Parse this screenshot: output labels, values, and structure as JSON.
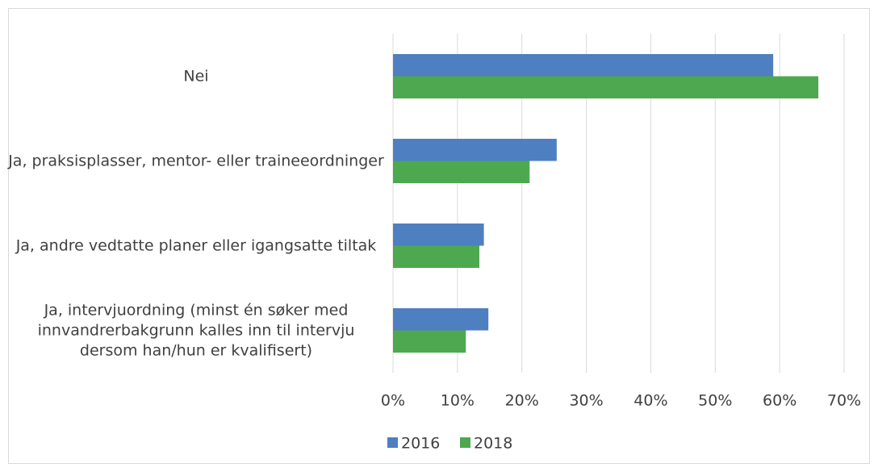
{
  "chart_data": {
    "type": "hbar",
    "categories": [
      "Nei",
      "Ja, praksisplasser, mentor- eller traineeordninger",
      "Ja, andre vedtatte planer eller igangsatte tiltak",
      "Ja, intervjuordning (minst én søker med innvandrerbakgrunn kalles inn til intervju dersom han/hun er kvalifisert)"
    ],
    "series": [
      {
        "name": "2016",
        "color": "#4e7fc0",
        "values": [
          59,
          25.4,
          14.1,
          14.8
        ]
      },
      {
        "name": "2018",
        "color": "#4ea84f",
        "values": [
          66,
          21.2,
          13.4,
          11.3
        ]
      }
    ],
    "xlim": [
      0,
      70
    ],
    "xticks": [
      {
        "value": 0,
        "label": "0%"
      },
      {
        "value": 10,
        "label": "10%"
      },
      {
        "value": 20,
        "label": "20%"
      },
      {
        "value": 30,
        "label": "30%"
      },
      {
        "value": 40,
        "label": "40%"
      },
      {
        "value": 50,
        "label": "50%"
      },
      {
        "value": 60,
        "label": "60%"
      },
      {
        "value": 70,
        "label": "70%"
      }
    ],
    "grid": true,
    "legend": "bottom"
  }
}
